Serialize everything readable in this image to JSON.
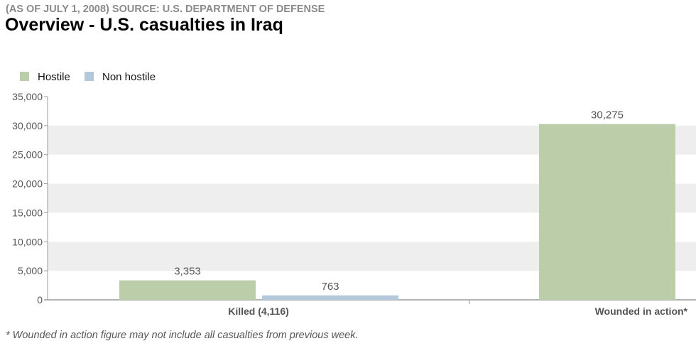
{
  "source": "(AS OF JULY 1, 2008) SOURCE: U.S. DEPARTMENT OF DEFENSE",
  "title": "Overview - U.S. casualties in Iraq",
  "footnote": "* Wounded in action figure may not include all casualties from previous week.",
  "colors": {
    "hostile": "#bccdaa",
    "non_hostile": "#b3c8da",
    "band": "#eeeeee",
    "axis": "#999999",
    "text": "#555555"
  },
  "chart_data": {
    "type": "bar",
    "title": "Overview - U.S. casualties in Iraq",
    "xlabel": "",
    "ylabel": "",
    "categories": [
      "Killed (4,116)",
      "Wounded in action*"
    ],
    "series": [
      {
        "name": "Hostile",
        "values": [
          3353,
          30275
        ],
        "labels": [
          "3,353",
          "30,275"
        ]
      },
      {
        "name": "Non hostile",
        "values": [
          763,
          null
        ],
        "labels": [
          "763",
          ""
        ]
      }
    ],
    "ylim": [
      0,
      35000
    ],
    "yticks": [
      0,
      5000,
      10000,
      15000,
      20000,
      25000,
      30000,
      35000
    ],
    "ytick_labels": [
      "0",
      "5,000",
      "10,000",
      "15,000",
      "20,000",
      "25,000",
      "30,000",
      "35,000"
    ],
    "legend": "top-left",
    "grid": "alternating bands"
  }
}
